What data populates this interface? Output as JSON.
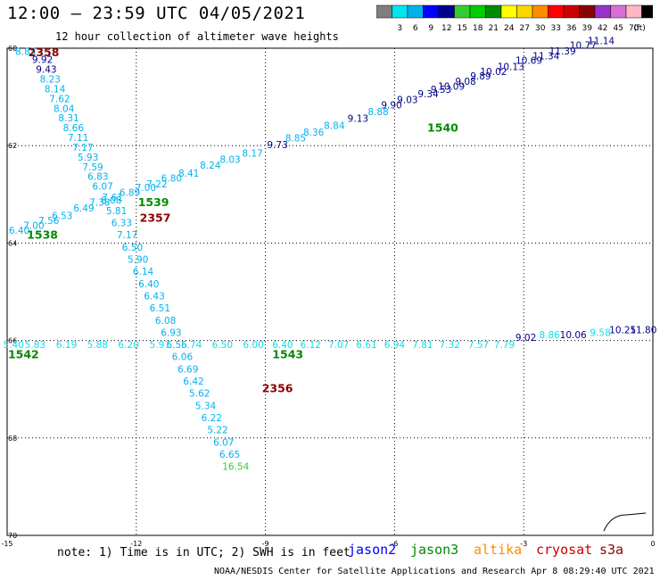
{
  "header": {
    "title": "12:00 – 23:59 UTC 04/05/2021",
    "subtitle": "12 hour collection of altimeter wave heights"
  },
  "legend": {
    "unit_label": "(ft)",
    "bins": [
      {
        "label": "",
        "color": "#7f7f7f"
      },
      {
        "label": "3",
        "color": "#00e5ee"
      },
      {
        "label": "6",
        "color": "#00b2ee"
      },
      {
        "label": "9",
        "color": "#0000ff"
      },
      {
        "label": "12",
        "color": "#00008b"
      },
      {
        "label": "15",
        "color": "#32cd32"
      },
      {
        "label": "18",
        "color": "#00cd00"
      },
      {
        "label": "21",
        "color": "#008b00"
      },
      {
        "label": "24",
        "color": "#ffff00"
      },
      {
        "label": "27",
        "color": "#ffd700"
      },
      {
        "label": "30",
        "color": "#ff8c00"
      },
      {
        "label": "33",
        "color": "#ff0000"
      },
      {
        "label": "36",
        "color": "#cd0000"
      },
      {
        "label": "39",
        "color": "#8b0000"
      },
      {
        "label": "42",
        "color": "#9932cc"
      },
      {
        "label": "45",
        "color": "#da70d6"
      },
      {
        "label": "70",
        "color": "#ffb6c1"
      },
      {
        "label": "",
        "color": "#000000"
      }
    ]
  },
  "map": {
    "lon_ticks": [
      "-15",
      "-12",
      "-9",
      "-6",
      "-3",
      "0"
    ],
    "lat_ticks": [
      "60",
      "62",
      "64",
      "66",
      "68",
      "70"
    ],
    "tracks": [
      {
        "color": "#00b2ee",
        "points": [
          {
            "lon": -14.57,
            "lat": 60.08,
            "v": "8.85"
          },
          {
            "lon": -14.18,
            "lat": 60.25,
            "v": "9.92",
            "c": "#00008b"
          },
          {
            "lon": -14.09,
            "lat": 60.45,
            "v": "9.43",
            "c": "#00008b"
          },
          {
            "lon": -14.0,
            "lat": 60.65,
            "v": "8.23"
          },
          {
            "lon": -13.89,
            "lat": 60.85,
            "v": "8.14"
          },
          {
            "lon": -13.78,
            "lat": 61.05,
            "v": "7.62"
          },
          {
            "lon": -13.68,
            "lat": 61.25,
            "v": "8.04"
          },
          {
            "lon": -13.57,
            "lat": 61.45,
            "v": "8.31"
          },
          {
            "lon": -13.46,
            "lat": 61.65,
            "v": "8.66"
          },
          {
            "lon": -13.35,
            "lat": 61.85,
            "v": "7.11"
          },
          {
            "lon": -13.24,
            "lat": 62.05,
            "v": "7.17"
          },
          {
            "lon": -13.12,
            "lat": 62.25,
            "v": "5.93"
          },
          {
            "lon": -13.01,
            "lat": 62.45,
            "v": "7.59"
          },
          {
            "lon": -12.89,
            "lat": 62.65,
            "v": "6.83"
          },
          {
            "lon": -12.78,
            "lat": 62.85,
            "v": "6.07"
          },
          {
            "lon": -12.58,
            "lat": 63.13,
            "v": "6.08"
          },
          {
            "lon": -12.46,
            "lat": 63.35,
            "v": "5.81"
          },
          {
            "lon": -12.34,
            "lat": 63.6,
            "v": "6.33"
          },
          {
            "lon": -12.21,
            "lat": 63.85,
            "v": "7.17"
          },
          {
            "lon": -12.09,
            "lat": 64.1,
            "v": "6.50"
          },
          {
            "lon": -11.96,
            "lat": 64.35,
            "v": "5.90"
          },
          {
            "lon": -11.84,
            "lat": 64.6,
            "v": "6.14"
          },
          {
            "lon": -11.71,
            "lat": 64.85,
            "v": "6.40"
          },
          {
            "lon": -11.58,
            "lat": 65.1,
            "v": "6.43"
          },
          {
            "lon": -11.45,
            "lat": 65.35,
            "v": "6.51"
          },
          {
            "lon": -11.32,
            "lat": 65.6,
            "v": "6.08"
          },
          {
            "lon": -11.19,
            "lat": 65.85,
            "v": "6.93"
          },
          {
            "lon": -11.06,
            "lat": 66.1,
            "v": "6.56"
          },
          {
            "lon": -10.93,
            "lat": 66.35,
            "v": "6.06"
          },
          {
            "lon": -10.8,
            "lat": 66.6,
            "v": "6.69"
          },
          {
            "lon": -10.67,
            "lat": 66.85,
            "v": "6.42"
          },
          {
            "lon": -10.53,
            "lat": 67.1,
            "v": "5.62"
          },
          {
            "lon": -10.39,
            "lat": 67.35,
            "v": "5.34"
          },
          {
            "lon": -10.25,
            "lat": 67.6,
            "v": "6.22"
          },
          {
            "lon": -10.11,
            "lat": 67.85,
            "v": "5.22"
          },
          {
            "lon": -9.97,
            "lat": 68.1,
            "v": "6.07"
          },
          {
            "lon": -9.83,
            "lat": 68.35,
            "v": "6.65"
          },
          {
            "lon": -9.69,
            "lat": 68.6,
            "v": "16.54",
            "c": "#32cd32"
          }
        ]
      },
      {
        "color": "#00b2ee",
        "points": [
          {
            "lon": -14.72,
            "lat": 63.75,
            "v": "6.40"
          },
          {
            "lon": -14.38,
            "lat": 63.65,
            "v": "7.00"
          },
          {
            "lon": -14.03,
            "lat": 63.55,
            "v": "7.56"
          },
          {
            "lon": -13.72,
            "lat": 63.45,
            "v": "6.53"
          },
          {
            "lon": -13.22,
            "lat": 63.3,
            "v": "6.49"
          },
          {
            "lon": -12.85,
            "lat": 63.18,
            "v": "7.38"
          },
          {
            "lon": -12.55,
            "lat": 63.08,
            "v": "7.61"
          },
          {
            "lon": -12.15,
            "lat": 62.98,
            "v": "6.89"
          },
          {
            "lon": -11.78,
            "lat": 62.88,
            "v": "7.00"
          },
          {
            "lon": -11.52,
            "lat": 62.8,
            "v": "7.22"
          },
          {
            "lon": -11.18,
            "lat": 62.68,
            "v": "6.80"
          },
          {
            "lon": -10.78,
            "lat": 62.58,
            "v": "8.41"
          },
          {
            "lon": -10.28,
            "lat": 62.42,
            "v": "8.24"
          },
          {
            "lon": -9.82,
            "lat": 62.3,
            "v": "8.03"
          },
          {
            "lon": -9.3,
            "lat": 62.17,
            "v": "8.17"
          },
          {
            "lon": -8.72,
            "lat": 62.0,
            "v": "9.73",
            "c": "#00008b"
          },
          {
            "lon": -8.3,
            "lat": 61.86,
            "v": "8.85"
          },
          {
            "lon": -7.88,
            "lat": 61.74,
            "v": "8.36"
          },
          {
            "lon": -7.4,
            "lat": 61.6,
            "v": "8.84"
          },
          {
            "lon": -6.85,
            "lat": 61.46,
            "v": "9.13",
            "c": "#00008b"
          },
          {
            "lon": -6.38,
            "lat": 61.32,
            "v": "8.88"
          },
          {
            "lon": -6.07,
            "lat": 61.18,
            "v": "9.90",
            "c": "#00008b"
          },
          {
            "lon": -5.7,
            "lat": 61.07,
            "v": "9.03",
            "c": "#00008b"
          },
          {
            "lon": -5.22,
            "lat": 60.95,
            "v": "9.34",
            "c": "#00008b"
          },
          {
            "lon": -4.92,
            "lat": 60.86,
            "v": "9.53",
            "c": "#00008b"
          },
          {
            "lon": -4.68,
            "lat": 60.8,
            "v": "10.09",
            "c": "#00008b"
          },
          {
            "lon": -4.35,
            "lat": 60.7,
            "v": "9.08",
            "c": "#00008b"
          },
          {
            "lon": -4.0,
            "lat": 60.59,
            "v": "9.89",
            "c": "#00008b"
          },
          {
            "lon": -3.7,
            "lat": 60.49,
            "v": "10.02",
            "c": "#00008b"
          },
          {
            "lon": -3.3,
            "lat": 60.39,
            "v": "10.13",
            "c": "#00008b"
          },
          {
            "lon": -2.88,
            "lat": 60.27,
            "v": "10.69",
            "c": "#00008b"
          },
          {
            "lon": -2.48,
            "lat": 60.17,
            "v": "11.34",
            "c": "#00008b"
          },
          {
            "lon": -2.1,
            "lat": 60.07,
            "v": "11.39",
            "c": "#00008b"
          },
          {
            "lon": -1.62,
            "lat": 59.95,
            "v": "10.77",
            "c": "#00008b"
          },
          {
            "lon": -1.2,
            "lat": 59.86,
            "v": "11.14",
            "c": "#00008b"
          }
        ]
      },
      {
        "color": "#00e5ee",
        "points": [
          {
            "lon": -14.85,
            "lat": 66.1,
            "v": "5.40"
          },
          {
            "lon": -14.35,
            "lat": 66.1,
            "v": "5.83"
          },
          {
            "lon": -13.62,
            "lat": 66.1,
            "v": "6.19"
          },
          {
            "lon": -12.9,
            "lat": 66.1,
            "v": "5.88"
          },
          {
            "lon": -12.18,
            "lat": 66.1,
            "v": "6.20"
          },
          {
            "lon": -11.45,
            "lat": 66.1,
            "v": "5.97"
          },
          {
            "lon": -10.72,
            "lat": 66.1,
            "v": "5.74"
          },
          {
            "lon": -10.0,
            "lat": 66.1,
            "v": "6.50"
          },
          {
            "lon": -9.28,
            "lat": 66.1,
            "v": "6.00"
          },
          {
            "lon": -8.6,
            "lat": 66.1,
            "v": "6.40"
          },
          {
            "lon": -7.95,
            "lat": 66.1,
            "v": "6.12"
          },
          {
            "lon": -7.3,
            "lat": 66.1,
            "v": "7.07"
          },
          {
            "lon": -6.65,
            "lat": 66.1,
            "v": "6.61"
          },
          {
            "lon": -6.0,
            "lat": 66.1,
            "v": "6.94"
          },
          {
            "lon": -5.35,
            "lat": 66.1,
            "v": "7.81"
          },
          {
            "lon": -4.72,
            "lat": 66.1,
            "v": "7.32"
          },
          {
            "lon": -4.05,
            "lat": 66.1,
            "v": "7.57"
          },
          {
            "lon": -3.45,
            "lat": 66.1,
            "v": "7.79"
          },
          {
            "lon": -2.95,
            "lat": 65.95,
            "v": "9.02",
            "c": "#00008b"
          },
          {
            "lon": -2.4,
            "lat": 65.9,
            "v": "8.86"
          },
          {
            "lon": -1.85,
            "lat": 65.9,
            "v": "10.06",
            "c": "#00008b"
          },
          {
            "lon": -1.22,
            "lat": 65.85,
            "v": "9.58"
          },
          {
            "lon": -0.7,
            "lat": 65.8,
            "v": "10.25",
            "c": "#00008b"
          },
          {
            "lon": -0.22,
            "lat": 65.8,
            "v": "11.80",
            "c": "#00008b"
          }
        ]
      }
    ],
    "time_labels": [
      {
        "text": "2358",
        "lon": -14.15,
        "lat": 60.1,
        "c": "#8b0000"
      },
      {
        "text": "2357",
        "lon": -11.56,
        "lat": 63.5,
        "c": "#8b0000"
      },
      {
        "text": "2356",
        "lon": -8.72,
        "lat": 67.0,
        "c": "#8b0000"
      },
      {
        "text": "1539",
        "lon": -11.6,
        "lat": 63.18,
        "c": "#008b00"
      },
      {
        "text": "1538",
        "lon": -14.18,
        "lat": 63.85,
        "c": "#008b00"
      },
      {
        "text": "1540",
        "lon": -4.88,
        "lat": 61.65,
        "c": "#008b00"
      },
      {
        "text": "1542",
        "lon": -14.62,
        "lat": 66.3,
        "c": "#008b00"
      },
      {
        "text": "1543",
        "lon": -8.48,
        "lat": 66.3,
        "c": "#008b00"
      }
    ]
  },
  "footer": {
    "note": "note: 1) Time is in UTC; 2) SWH is in feet",
    "credit": "NOAA/NESDIS Center for Satellite Applications and Research   Apr  8 08:29:40 UTC 2021",
    "satellites": [
      {
        "name": "jason2",
        "color": "#0000ff"
      },
      {
        "name": "jason3",
        "color": "#008b00"
      },
      {
        "name": "altika",
        "color": "#ff8c00"
      },
      {
        "name": "cryosat",
        "color": "#cd0000"
      },
      {
        "name": "s3a",
        "color": "#8b0000"
      }
    ]
  }
}
